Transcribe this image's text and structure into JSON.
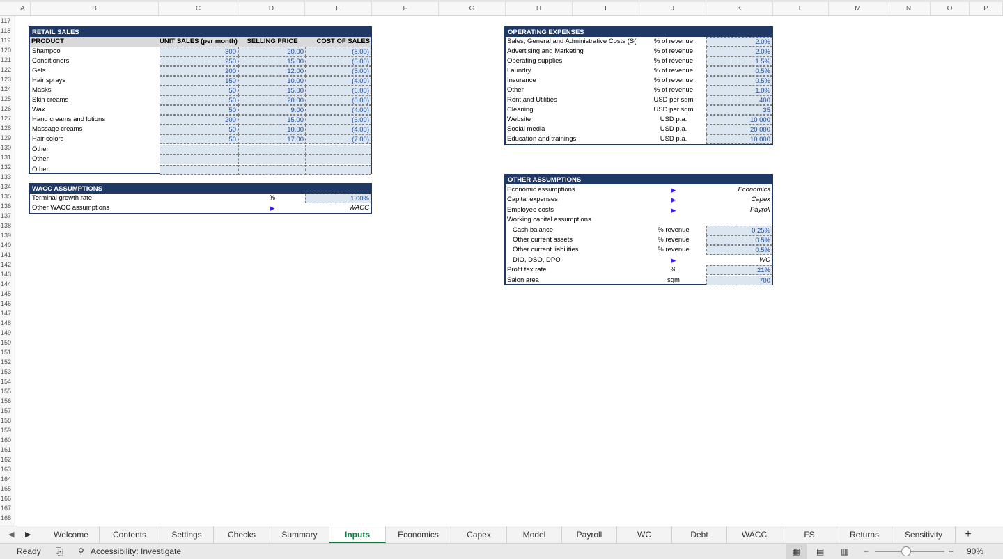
{
  "columns": [
    "A",
    "B",
    "C",
    "D",
    "E",
    "F",
    "G",
    "H",
    "I",
    "J",
    "K",
    "L",
    "M",
    "N",
    "O",
    "P"
  ],
  "rows": [
    "117",
    "118",
    "119",
    "120",
    "121",
    "122",
    "123",
    "124",
    "125",
    "126",
    "127",
    "128",
    "129",
    "130",
    "131",
    "132",
    "133",
    "134",
    "135",
    "136",
    "137",
    "138",
    "139",
    "140",
    "141",
    "142",
    "143",
    "144",
    "145",
    "146",
    "147",
    "148",
    "149",
    "150",
    "151",
    "152",
    "153",
    "154",
    "155",
    "156",
    "157",
    "158",
    "159",
    "160",
    "161",
    "162",
    "163",
    "164",
    "165",
    "166",
    "167",
    "168"
  ],
  "retail": {
    "title": "RETAIL SALES",
    "headers": [
      "PRODUCT",
      "UNIT SALES (per month)",
      "SELLING PRICE",
      "COST OF SALES"
    ],
    "items": [
      {
        "name": "Shampoo",
        "units": "300",
        "price": "20.00",
        "cost": "(8.00)"
      },
      {
        "name": "Conditioners",
        "units": "250",
        "price": "15.00",
        "cost": "(6.00)"
      },
      {
        "name": "Gels",
        "units": "200",
        "price": "12.00",
        "cost": "(5.00)"
      },
      {
        "name": "Hair sprays",
        "units": "150",
        "price": "10.00",
        "cost": "(4.00)"
      },
      {
        "name": "Masks",
        "units": "50",
        "price": "15.00",
        "cost": "(6.00)"
      },
      {
        "name": "Skin creams",
        "units": "50",
        "price": "20.00",
        "cost": "(8.00)"
      },
      {
        "name": "Wax",
        "units": "50",
        "price": "9.00",
        "cost": "(4.00)"
      },
      {
        "name": "Hand creams and lotions",
        "units": "200",
        "price": "15.00",
        "cost": "(6.00)"
      },
      {
        "name": "Massage creams",
        "units": "50",
        "price": "10.00",
        "cost": "(4.00)"
      },
      {
        "name": "Hair colors",
        "units": "50",
        "price": "17.00",
        "cost": "(7.00)"
      },
      {
        "name": "Other",
        "units": "",
        "price": "",
        "cost": ""
      },
      {
        "name": "Other",
        "units": "",
        "price": "",
        "cost": ""
      },
      {
        "name": "Other",
        "units": "",
        "price": "",
        "cost": ""
      }
    ]
  },
  "wacc": {
    "title": "WACC ASSUMPTIONS",
    "rows": [
      {
        "label": "Terminal growth rate",
        "unit": "%",
        "value": "1.00%"
      },
      {
        "label": "Other WACC assumptions",
        "unit": "▶",
        "value": "WACC"
      }
    ]
  },
  "opex": {
    "title": "OPERATING EXPENSES",
    "rows": [
      {
        "label": "Sales, General and Administrative Costs (S(",
        "unit": "% of revenue",
        "value": "2.0%"
      },
      {
        "label": "Advertising and Marketing",
        "unit": "% of revenue",
        "value": "2.0%"
      },
      {
        "label": "Operating supplies",
        "unit": "% of revenue",
        "value": "1.5%"
      },
      {
        "label": "Laundry",
        "unit": "% of revenue",
        "value": "0.5%"
      },
      {
        "label": "Insurance",
        "unit": "% of revenue",
        "value": "0.5%"
      },
      {
        "label": "Other",
        "unit": "% of revenue",
        "value": "1.0%"
      },
      {
        "label": "Rent and Utilities",
        "unit": "USD per sqm",
        "value": "400"
      },
      {
        "label": "Cleaning",
        "unit": "USD per sqm",
        "value": "35"
      },
      {
        "label": "Website",
        "unit": "USD p.a.",
        "value": "10 000"
      },
      {
        "label": "Social media",
        "unit": "USD p.a.",
        "value": "20 000"
      },
      {
        "label": "Education and trainings",
        "unit": "USD p.a.",
        "value": "10 000"
      }
    ]
  },
  "other": {
    "title": "OTHER ASSUMPTIONS",
    "rows": [
      {
        "label": "Economic assumptions",
        "unit": "▶",
        "value": "Economics",
        "type": "link",
        "indent": false
      },
      {
        "label": "Capital expenses",
        "unit": "▶",
        "value": "Capex",
        "type": "link",
        "indent": false
      },
      {
        "label": "Employee costs",
        "unit": "▶",
        "value": "Payroll",
        "type": "link",
        "indent": false
      },
      {
        "label": "Working capital assumptions",
        "unit": "",
        "value": "",
        "type": "none",
        "indent": false
      },
      {
        "label": "Cash balance",
        "unit": "% revenue",
        "value": "0.25%",
        "type": "input",
        "indent": true
      },
      {
        "label": "Other current assets",
        "unit": "% revenue",
        "value": "0.5%",
        "type": "input",
        "indent": true
      },
      {
        "label": "Other current liabilities",
        "unit": "% revenue",
        "value": "0.5%",
        "type": "input",
        "indent": true
      },
      {
        "label": "DIO, DSO, DPO",
        "unit": "▶",
        "value": "WC",
        "type": "link",
        "indent": true
      },
      {
        "label": "Profit tax rate",
        "unit": "%",
        "value": "21%",
        "type": "input",
        "indent": false
      },
      {
        "label": "Salon area",
        "unit": "sqm",
        "value": "700",
        "type": "input",
        "indent": false
      }
    ]
  },
  "tabs": [
    "Welcome",
    "Contents",
    "Settings",
    "Checks",
    "Summary",
    "Inputs",
    "Economics",
    "Capex",
    "Model",
    "Payroll",
    "WC",
    "Debt",
    "WACC",
    "FS",
    "Returns",
    "Sensitivity"
  ],
  "active_tab": "Inputs",
  "add_sheet": "+",
  "status": {
    "ready": "Ready",
    "accessibility": "Accessibility: Investigate",
    "zoom": "90%",
    "minus": "−",
    "plus": "+"
  }
}
